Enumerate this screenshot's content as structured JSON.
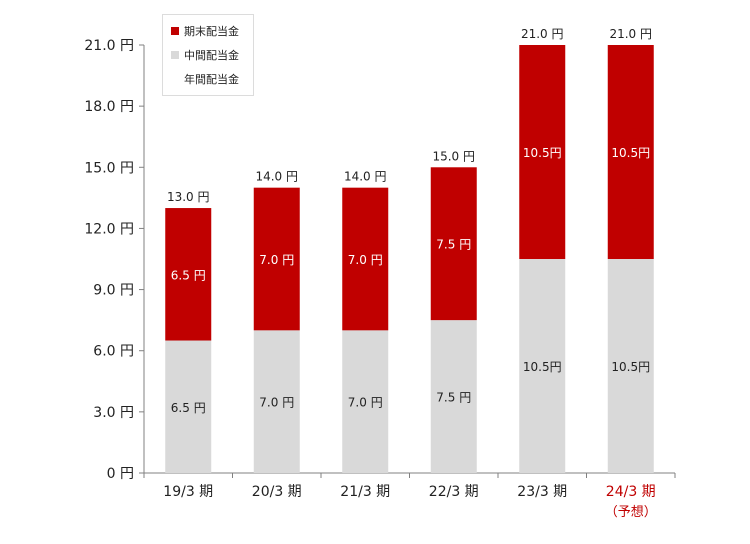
{
  "colors": {
    "period_end": "#c00000",
    "interim": "#d9d9d9",
    "annual": "#ffffff",
    "forecast_label": "#c00000",
    "axis": "#808080",
    "text": "#222222"
  },
  "legend": {
    "period_end_label": "期末配当金",
    "interim_label": "中間配当金",
    "annual_label": "年間配当金"
  },
  "chart_data": {
    "type": "bar",
    "stacked": true,
    "categories": [
      "19/3 期",
      "20/3 期",
      "21/3 期",
      "22/3 期",
      "23/3 期",
      "24/3 期"
    ],
    "category_sublabels": [
      "",
      "",
      "",
      "",
      "",
      "（予想）"
    ],
    "highlight_category_index": 5,
    "series": [
      {
        "name": "中間配当金",
        "values": [
          6.5,
          7.0,
          7.0,
          7.5,
          10.5,
          10.5
        ],
        "labels": [
          "6.5 円",
          "7.0 円",
          "7.0 円",
          "7.5 円",
          "10.5円",
          "10.5円"
        ]
      },
      {
        "name": "期末配当金",
        "values": [
          6.5,
          7.0,
          7.0,
          7.5,
          10.5,
          10.5
        ],
        "labels": [
          "6.5 円",
          "7.0 円",
          "7.0 円",
          "7.5 円",
          "10.5円",
          "10.5円"
        ]
      }
    ],
    "totals": [
      13.0,
      14.0,
      14.0,
      15.0,
      21.0,
      21.0
    ],
    "total_labels": [
      "13.0 円",
      "14.0 円",
      "14.0 円",
      "15.0 円",
      "21.0 円",
      "21.0 円"
    ],
    "total_series_name": "年間配当金",
    "yticks": [
      0,
      3,
      6,
      9,
      12,
      15,
      18,
      21
    ],
    "ytick_labels": [
      "0 円",
      "3.0 円",
      "6.0 円",
      "9.0 円",
      "12.0 円",
      "15.0 円",
      "18.0 円",
      "21.0 円"
    ],
    "ylim": [
      0,
      21
    ],
    "grid": false,
    "legend_position": "top-left"
  }
}
